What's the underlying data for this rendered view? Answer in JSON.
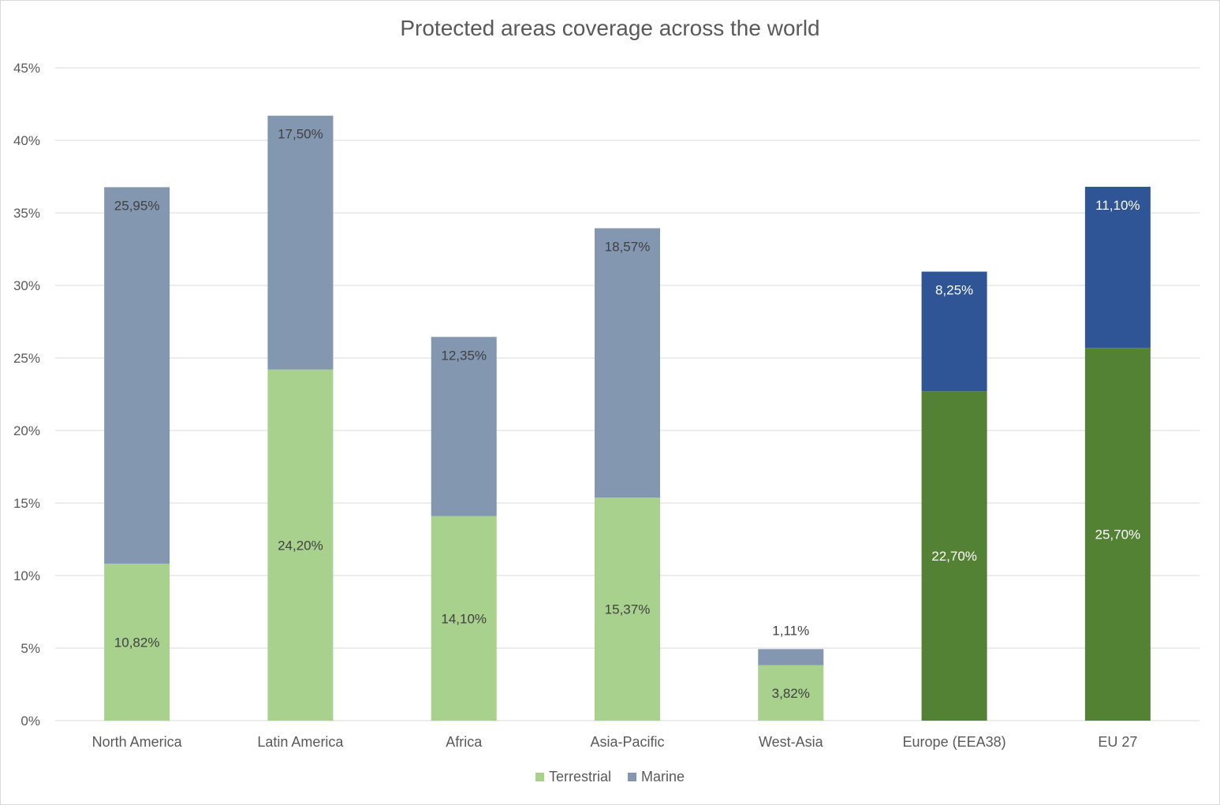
{
  "chart_data": {
    "type": "bar",
    "stacked": true,
    "title": "Protected areas coverage across the world",
    "xlabel": "",
    "ylabel": "",
    "ylim": [
      0,
      45
    ],
    "yticks": [
      "0%",
      "5%",
      "10%",
      "15%",
      "20%",
      "25%",
      "30%",
      "35%",
      "40%",
      "45%"
    ],
    "grid": true,
    "legend_position": "bottom",
    "categories": [
      "North America",
      "Latin America",
      "Africa",
      "Asia-Pacific",
      "West-Asia",
      "Europe (EEA38)",
      "EU 27"
    ],
    "series": [
      {
        "name": "Terrestrial",
        "values": [
          10.82,
          24.2,
          14.1,
          15.37,
          3.82,
          22.7,
          25.7
        ],
        "labels": [
          "10,82%",
          "24,20%",
          "14,10%",
          "15,37%",
          "3,82%",
          "22,70%",
          "25,70%"
        ]
      },
      {
        "name": "Marine",
        "values": [
          25.95,
          17.5,
          12.35,
          18.57,
          1.11,
          8.25,
          11.1
        ],
        "labels": [
          "25,95%",
          "17,50%",
          "12,35%",
          "18,57%",
          "1,11%",
          "8,25%",
          "11,10%"
        ]
      }
    ],
    "colors": {
      "terrestrial": "#a9d18e",
      "marine": "#8497b0",
      "terrestrial_europe": "#548235",
      "marine_europe": "#2f5597",
      "grid": "#d9d9d9",
      "text": "#404040",
      "axis_text": "#595959"
    },
    "highlight_categories": [
      "Europe (EEA38)",
      "EU 27"
    ]
  }
}
